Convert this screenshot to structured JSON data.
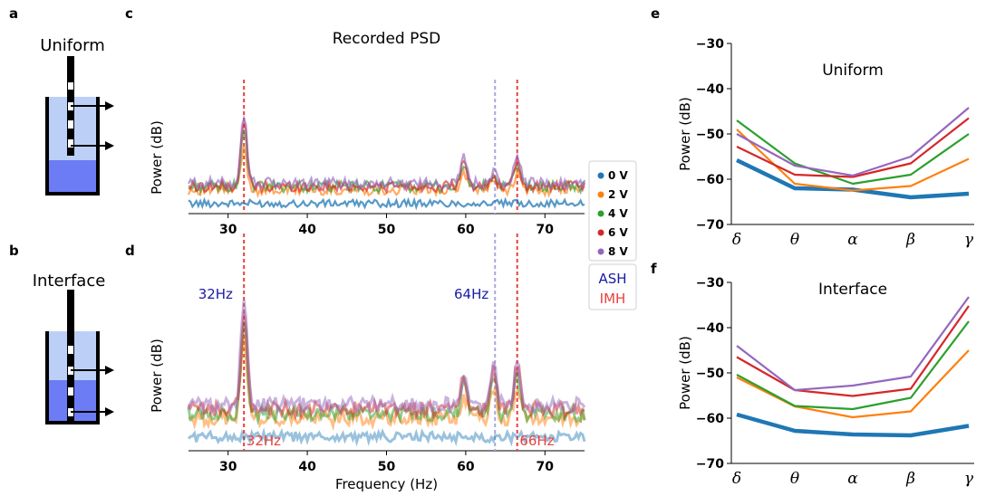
{
  "panel_letters": {
    "a": "a",
    "b": "b",
    "c": "c",
    "d": "d",
    "e": "e",
    "f": "f"
  },
  "schematics": {
    "uniform": {
      "label": "Uniform"
    },
    "interface": {
      "label": "Interface"
    }
  },
  "colors": {
    "0V": "#1f77b4",
    "2V": "#ff7f0e",
    "4V": "#2ca02c",
    "6V": "#d62728",
    "8V": "#9467bd",
    "ash": "#1a1aa6",
    "imh": "#e8413d",
    "tank_light": "#bcd0f7",
    "tank_dark": "#6b7cf5"
  },
  "legend": {
    "entries": [
      {
        "label": "0 V",
        "color": "#1f77b4"
      },
      {
        "label": "2 V",
        "color": "#ff7f0e"
      },
      {
        "label": "4 V",
        "color": "#2ca02c"
      },
      {
        "label": "6 V",
        "color": "#d62728"
      },
      {
        "label": "8 V",
        "color": "#9467bd"
      }
    ],
    "ash": "ASH",
    "imh": "IMH"
  },
  "chart_data": [
    {
      "id": "c",
      "type": "line",
      "title": "Recorded PSD",
      "ylabel": "Power (dB)",
      "xlabel": "",
      "xlim": [
        25,
        75
      ],
      "xticks": [
        "30",
        "40",
        "50",
        "60",
        "70"
      ],
      "vlines": [
        {
          "x": 32,
          "style": "imh"
        },
        {
          "x": 63.7,
          "style": "ash"
        },
        {
          "x": 66.5,
          "style": "imh"
        }
      ],
      "annotations": [],
      "series": [
        {
          "name": "0 V",
          "baseline": -64,
          "peaks": []
        },
        {
          "name": "2 V",
          "baseline": -60,
          "peaks": [
            [
              32,
              12
            ],
            [
              59.8,
              5
            ],
            [
              63.5,
              3
            ],
            [
              66.5,
              5
            ]
          ]
        },
        {
          "name": "4 V",
          "baseline": -59,
          "peaks": [
            [
              32,
              16
            ],
            [
              59.8,
              6
            ],
            [
              63.5,
              3
            ],
            [
              66.5,
              6
            ]
          ]
        },
        {
          "name": "6 V",
          "baseline": -59,
          "peaks": [
            [
              32,
              19
            ],
            [
              59.8,
              7
            ],
            [
              63.5,
              3
            ],
            [
              66.5,
              7
            ]
          ]
        },
        {
          "name": "8 V",
          "baseline": -58,
          "peaks": [
            [
              32,
              20
            ],
            [
              59.8,
              8
            ],
            [
              63.5,
              3
            ],
            [
              66.5,
              8
            ]
          ]
        }
      ]
    },
    {
      "id": "d",
      "type": "line",
      "title": "",
      "ylabel": "Power (dB)",
      "xlabel": "Frequency (Hz)",
      "xlim": [
        25,
        75
      ],
      "xticks": [
        "30",
        "40",
        "50",
        "60",
        "70"
      ],
      "vlines": [
        {
          "x": 32,
          "style": "imh"
        },
        {
          "x": 63.7,
          "style": "ash"
        },
        {
          "x": 66.5,
          "style": "imh"
        }
      ],
      "annotations": [
        {
          "text": "32Hz",
          "style": "ash",
          "pos": "upper-left"
        },
        {
          "text": "64Hz",
          "style": "ash",
          "pos": "upper-right"
        },
        {
          "text": "32Hz",
          "style": "imh",
          "pos": "lower-left"
        },
        {
          "text": "66Hz",
          "style": "imh",
          "pos": "lower-right"
        }
      ],
      "series": [
        {
          "name": "0 V",
          "baseline": -64,
          "peaks": []
        },
        {
          "name": "2 V",
          "baseline": -60,
          "peaks": [
            [
              32,
              18
            ],
            [
              59.8,
              5
            ],
            [
              63.5,
              7
            ],
            [
              66.5,
              7
            ]
          ]
        },
        {
          "name": "4 V",
          "baseline": -59,
          "peaks": [
            [
              32,
              20
            ],
            [
              59.8,
              6
            ],
            [
              63.5,
              8
            ],
            [
              66.5,
              8
            ]
          ]
        },
        {
          "name": "6 V",
          "baseline": -58,
          "peaks": [
            [
              32,
              21
            ],
            [
              59.8,
              7
            ],
            [
              63.5,
              9
            ],
            [
              66.5,
              9
            ]
          ]
        },
        {
          "name": "8 V",
          "baseline": -57,
          "peaks": [
            [
              32,
              22
            ],
            [
              59.8,
              7
            ],
            [
              63.5,
              9
            ],
            [
              66.5,
              9
            ]
          ]
        }
      ]
    },
    {
      "id": "e",
      "type": "line",
      "title": "Uniform",
      "ylabel": "Power (dB)",
      "categories": [
        "δ",
        "θ",
        "α",
        "β",
        "γ"
      ],
      "ylim": [
        -70,
        -30
      ],
      "yticks": [
        "−70",
        "−60",
        "−50",
        "−40",
        "−30"
      ],
      "series": [
        {
          "name": "0 V",
          "values": [
            -55.8,
            -62.0,
            -62.3,
            -64.0,
            -63.2
          ]
        },
        {
          "name": "2 V",
          "values": [
            -49.0,
            -61.0,
            -62.5,
            -61.5,
            -55.5
          ]
        },
        {
          "name": "4 V",
          "values": [
            -47.0,
            -56.5,
            -61.0,
            -59.0,
            -50.0
          ]
        },
        {
          "name": "6 V",
          "values": [
            -52.8,
            -59.0,
            -59.5,
            -56.5,
            -46.5
          ]
        },
        {
          "name": "8 V",
          "values": [
            -50.0,
            -57.0,
            -59.2,
            -55.0,
            -44.2
          ]
        }
      ]
    },
    {
      "id": "f",
      "type": "line",
      "title": "Interface",
      "ylabel": "Power (dB)",
      "categories": [
        "δ",
        "θ",
        "α",
        "β",
        "γ"
      ],
      "ylim": [
        -70,
        -30
      ],
      "yticks": [
        "−70",
        "−60",
        "−50",
        "−40",
        "−30"
      ],
      "series": [
        {
          "name": "0 V",
          "values": [
            -59.2,
            -62.8,
            -63.6,
            -63.8,
            -61.7
          ]
        },
        {
          "name": "2 V",
          "values": [
            -51.0,
            -57.4,
            -59.8,
            -58.5,
            -45.0
          ]
        },
        {
          "name": "4 V",
          "values": [
            -50.4,
            -57.3,
            -58.0,
            -55.5,
            -38.6
          ]
        },
        {
          "name": "6 V",
          "values": [
            -46.5,
            -53.8,
            -55.1,
            -53.5,
            -35.2
          ]
        },
        {
          "name": "8 V",
          "values": [
            -44.0,
            -53.8,
            -52.8,
            -50.8,
            -33.2
          ]
        }
      ]
    }
  ]
}
